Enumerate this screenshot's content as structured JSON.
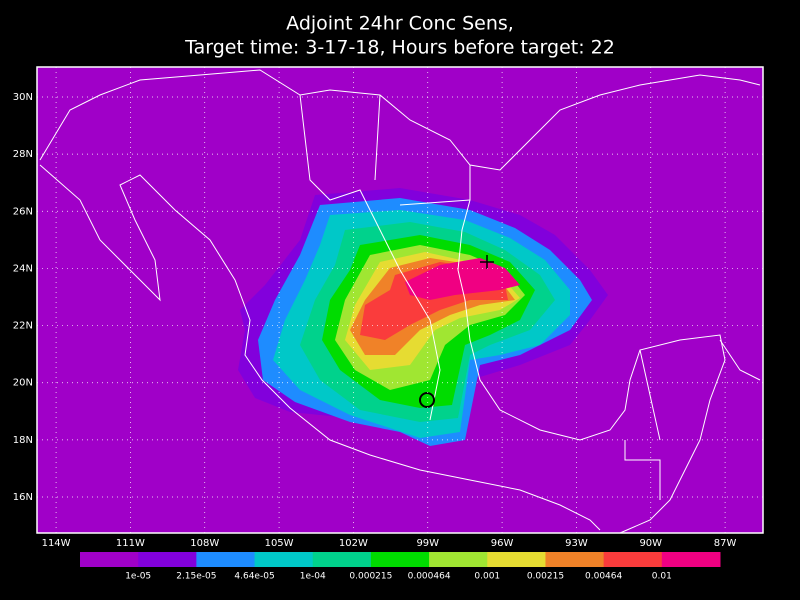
{
  "title": [
    "Adjoint 24hr Conc Sens,",
    "Target time: 3-17-18, Hours before target: 22"
  ],
  "lon_range": [
    -114.77,
    -85.47
  ],
  "lat_range": [
    14.74,
    31.05
  ],
  "lat_labels": [
    {
      "value": 30,
      "label": "30N"
    },
    {
      "value": 28,
      "label": "28N"
    },
    {
      "value": 26,
      "label": "26N"
    },
    {
      "value": 24,
      "label": "24N"
    },
    {
      "value": 22,
      "label": "22N"
    },
    {
      "value": 20,
      "label": "20N"
    },
    {
      "value": 18,
      "label": "18N"
    },
    {
      "value": 16,
      "label": "16N"
    }
  ],
  "lon_labels": [
    {
      "value": -114,
      "label": "114W"
    },
    {
      "value": -111,
      "label": "111W"
    },
    {
      "value": -108,
      "label": "108W"
    },
    {
      "value": -105,
      "label": "105W"
    },
    {
      "value": -102,
      "label": "102W"
    },
    {
      "value": -99,
      "label": "99W"
    },
    {
      "value": -96,
      "label": "96W"
    },
    {
      "value": -93,
      "label": "93W"
    },
    {
      "value": -90,
      "label": "90W"
    },
    {
      "value": -87,
      "label": "87W"
    }
  ],
  "colorbar": {
    "colors": [
      "#a000c8",
      "#8200dc",
      "#1e8cff",
      "#00c8c8",
      "#00d28c",
      "#00dc00",
      "#a0e632",
      "#e6dc32",
      "#f08228",
      "#fa3c3c",
      "#f00082"
    ],
    "labels": [
      "1e-05",
      "2.15e-05",
      "4.64e-05",
      "1e-04",
      "0.000215",
      "0.000464",
      "0.001",
      "0.00215",
      "0.00464",
      "0.01"
    ]
  }
}
